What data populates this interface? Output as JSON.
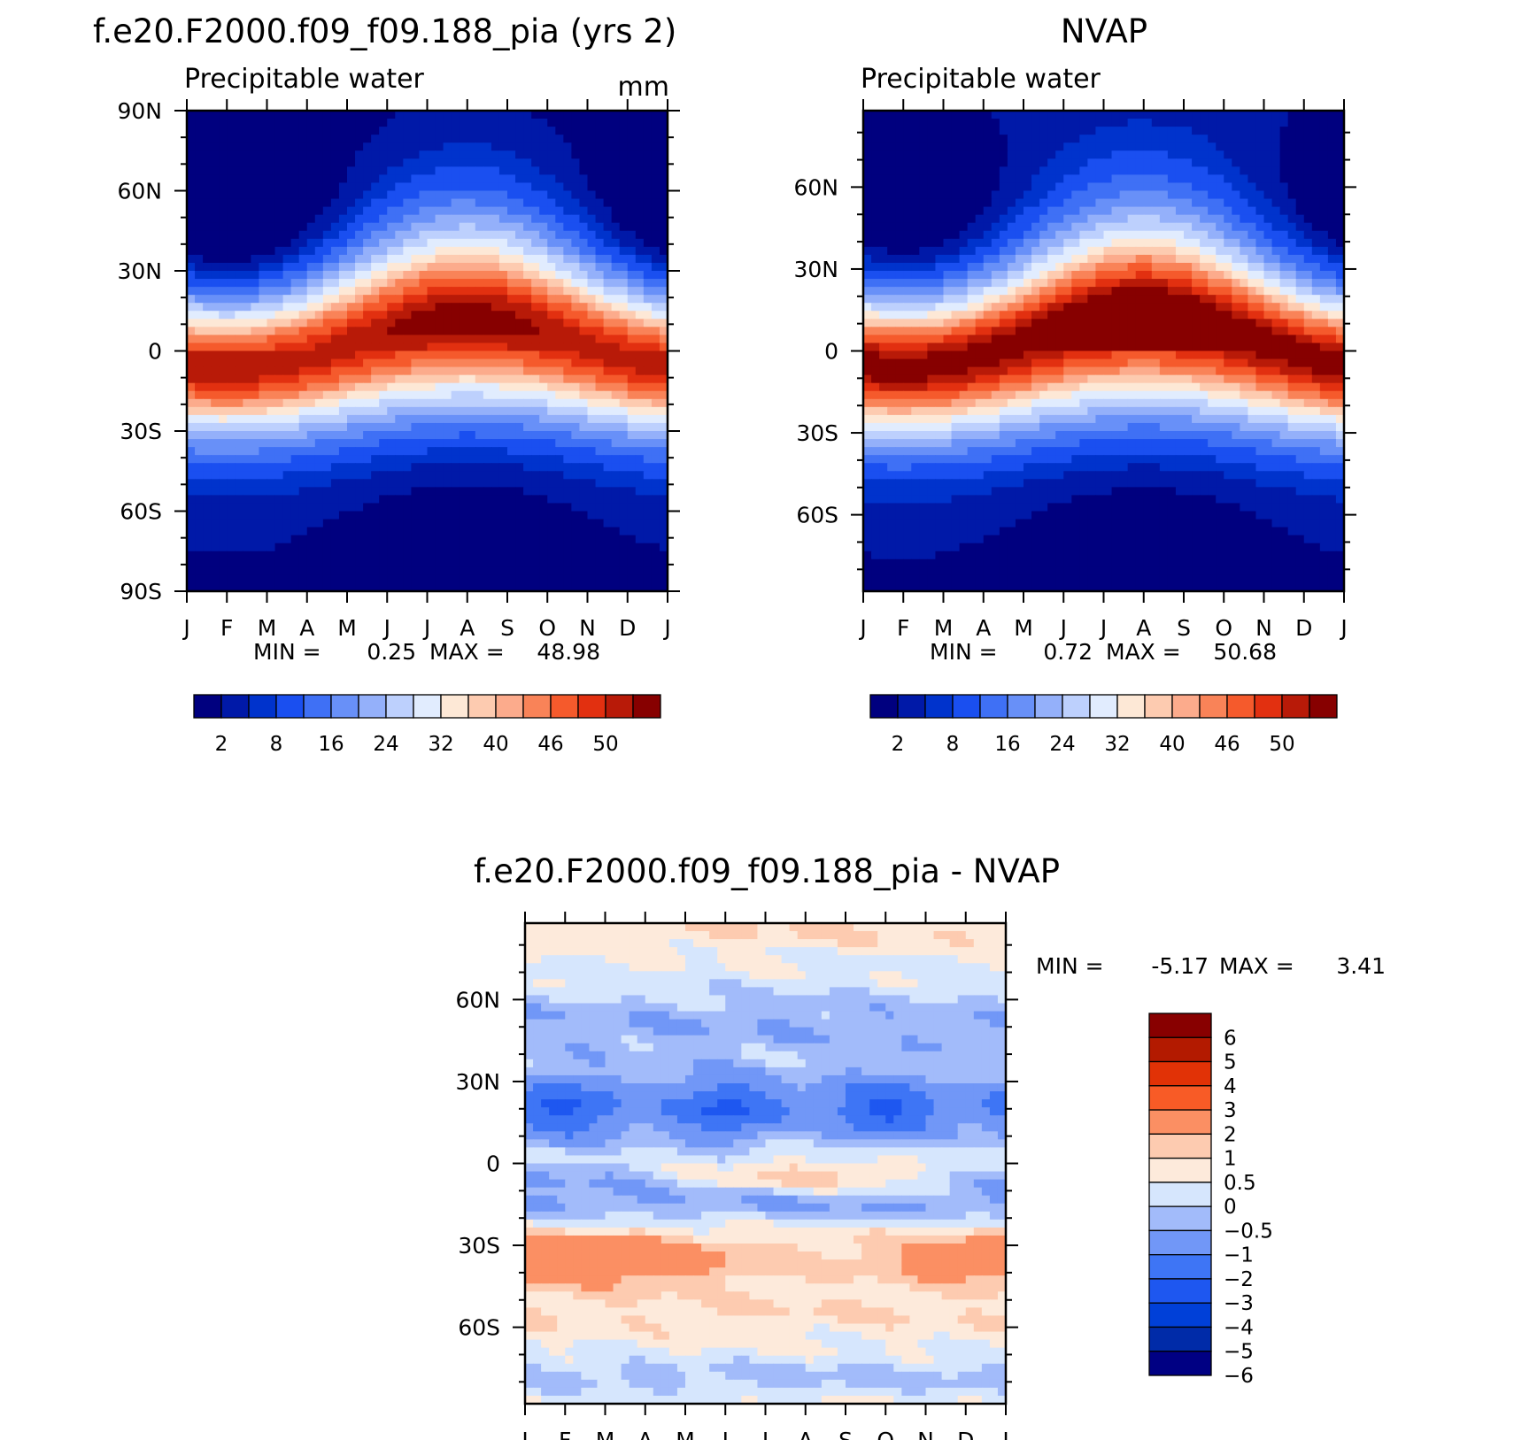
{
  "months": [
    "J",
    "F",
    "M",
    "A",
    "M",
    "J",
    "J",
    "A",
    "S",
    "O",
    "N",
    "D",
    "J"
  ],
  "chart_data": [
    {
      "type": "heatmap",
      "title": "f.e20.F2000.f09_f09.188_pia (yrs 2)",
      "subtitle_left": "Precipitable water",
      "subtitle_right": "mm",
      "x_labels": [
        "J",
        "F",
        "M",
        "A",
        "M",
        "J",
        "J",
        "A",
        "S",
        "O",
        "N",
        "D",
        "J"
      ],
      "y_labels": [
        "90N",
        "60N",
        "30N",
        "0",
        "30S",
        "60S",
        "90S"
      ],
      "y_values": [
        90,
        60,
        30,
        0,
        -30,
        -60,
        -90
      ],
      "ylim": [
        -90,
        90
      ],
      "min_label": "MIN =",
      "min_value": "0.25",
      "max_label": "MAX =",
      "max_value": "48.98",
      "colorbar_labels": [
        "2",
        "8",
        "16",
        "24",
        "32",
        "40",
        "46",
        "50"
      ],
      "equator_peak_mm": 48.98,
      "polar_min_mm": 0.25
    },
    {
      "type": "heatmap",
      "title": "NVAP",
      "subtitle_left": "Precipitable water",
      "x_labels": [
        "J",
        "F",
        "M",
        "A",
        "M",
        "J",
        "J",
        "A",
        "S",
        "O",
        "N",
        "D",
        "J"
      ],
      "y_labels": [
        "60N",
        "30N",
        "0",
        "30S",
        "60S"
      ],
      "y_values": [
        60,
        30,
        0,
        -30,
        -60
      ],
      "ylim": [
        -88,
        88
      ],
      "min_label": "MIN =",
      "min_value": "0.72",
      "max_label": "MAX =",
      "max_value": "50.68",
      "colorbar_labels": [
        "2",
        "8",
        "16",
        "24",
        "32",
        "40",
        "46",
        "50"
      ],
      "equator_peak_mm": 50.68,
      "polar_min_mm": 0.72
    },
    {
      "type": "heatmap",
      "title": "f.e20.F2000.f09_f09.188_pia - NVAP",
      "x_labels": [
        "J",
        "F",
        "M",
        "A",
        "M",
        "J",
        "J",
        "A",
        "S",
        "O",
        "N",
        "D",
        "J"
      ],
      "y_labels": [
        "60N",
        "30N",
        "0",
        "30S",
        "60S"
      ],
      "y_values": [
        60,
        30,
        0,
        -30,
        -60
      ],
      "ylim": [
        -88,
        88
      ],
      "min_label": "MIN =",
      "min_value": "-5.17",
      "max_label": "MAX =",
      "max_value": "3.41",
      "colorbar_labels": [
        "6",
        "5",
        "4",
        "3",
        "2",
        "1",
        "0.5",
        "0",
        "−0.5",
        "−1",
        "−2",
        "−3",
        "−4",
        "−5",
        "−6"
      ]
    }
  ],
  "colors": {
    "seq": [
      "#00007f",
      "#0019a8",
      "#0033cc",
      "#1a4ff0",
      "#3f70f5",
      "#6890f8",
      "#94b0fa",
      "#bdd0fd",
      "#e1ecfe",
      "#fde8d6",
      "#fdcbb0",
      "#fcab8c",
      "#f98358",
      "#f55a2c",
      "#e23010",
      "#b81a08",
      "#870000"
    ],
    "diff": [
      "#000083",
      "#002ba8",
      "#0040d8",
      "#1e57f0",
      "#3e75f5",
      "#7197f7",
      "#a2bbfa",
      "#d6e6fd",
      "#fdeadb",
      "#fdcbb0",
      "#fb8f63",
      "#f85b26",
      "#e13206",
      "#b31a00",
      "#880000"
    ]
  }
}
